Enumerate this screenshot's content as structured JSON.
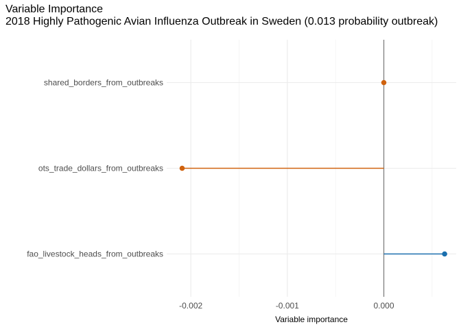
{
  "chart_data": {
    "type": "lollipop",
    "title": "Variable Importance",
    "subtitle": "2018 Highly Pathogenic Avian Influenza Outbreak in Sweden (0.013 probability outbreak)",
    "xlabel": "Variable importance",
    "ylabel": "",
    "categories": [
      "shared_borders_from_outbreaks",
      "ots_trade_dollars_from_outbreaks",
      "fao_livestock_heads_from_outbreaks"
    ],
    "values": [
      0.0,
      -0.00209,
      0.00063
    ],
    "xlim": [
      -0.00225,
      0.00075
    ],
    "x_ticks": [
      -0.002,
      -0.001,
      0.0
    ],
    "x_tick_labels": [
      "-0.002",
      "-0.001",
      "0.000"
    ],
    "grid": true,
    "legend": "none",
    "colors": {
      "positive": "#1a6fae",
      "negative": "#d0620e",
      "zero_line": "#7f7f7f",
      "grid_major": "#ebebeb",
      "grid_minor": "#f5f5f5"
    }
  }
}
